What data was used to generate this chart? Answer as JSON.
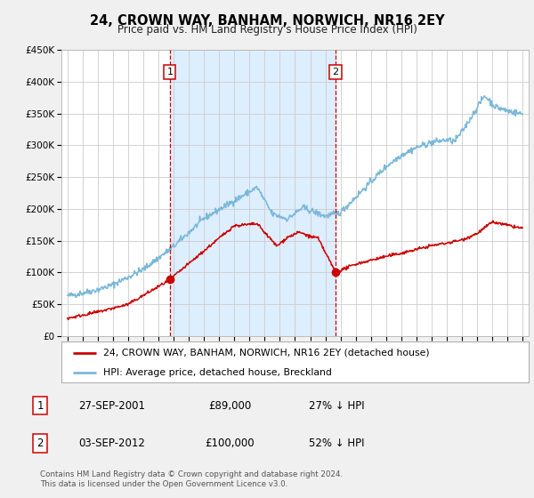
{
  "title": "24, CROWN WAY, BANHAM, NORWICH, NR16 2EY",
  "subtitle": "Price paid vs. HM Land Registry's House Price Index (HPI)",
  "hpi_label": "HPI: Average price, detached house, Breckland",
  "property_label": "24, CROWN WAY, BANHAM, NORWICH, NR16 2EY (detached house)",
  "annotation1_date": "27-SEP-2001",
  "annotation1_price": "£89,000",
  "annotation1_hpi": "27% ↓ HPI",
  "annotation2_date": "03-SEP-2012",
  "annotation2_price": "£100,000",
  "annotation2_hpi": "52% ↓ HPI",
  "sale1_year": 2001.75,
  "sale1_price": 89000,
  "sale2_year": 2012.67,
  "sale2_price": 100000,
  "vline1_year": 2001.75,
  "vline2_year": 2012.67,
  "xlim_left": 1994.6,
  "xlim_right": 2025.4,
  "ylim_bottom": 0,
  "ylim_top": 450000,
  "hpi_color": "#7ab8d9",
  "property_color": "#cc0000",
  "vline_color": "#cc0000",
  "shade_color": "#ddeeff",
  "background_color": "#f0f0f0",
  "plot_bg_color": "#ffffff",
  "legend_bg": "#ffffff",
  "footer": "Contains HM Land Registry data © Crown copyright and database right 2024.\nThis data is licensed under the Open Government Licence v3.0.",
  "yticks": [
    0,
    50000,
    100000,
    150000,
    200000,
    250000,
    300000,
    350000,
    400000,
    450000
  ],
  "ytick_labels": [
    "£0",
    "£50K",
    "£100K",
    "£150K",
    "£200K",
    "£250K",
    "£300K",
    "£350K",
    "£400K",
    "£450K"
  ]
}
